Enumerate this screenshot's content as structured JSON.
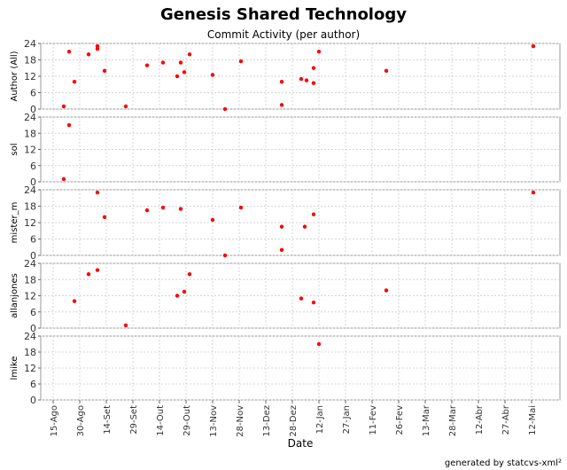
{
  "chart_data": {
    "type": "scatter",
    "title": "Genesis Shared Technology",
    "subtitle": "Commit Activity (per author)",
    "xlabel": "Date",
    "x_ticks": [
      "15-Ago",
      "30-Ago",
      "14-Set",
      "29-Set",
      "14-Out",
      "29-Out",
      "13-Nov",
      "28-Nov",
      "13-Dez",
      "28-Dez",
      "12-Jan",
      "27-Jan",
      "11-Fev",
      "26-Fev",
      "13-Mar",
      "28-Mar",
      "12-Abr",
      "27-Abr",
      "12-Mai"
    ],
    "ylim": [
      0,
      24
    ],
    "y_ticks": [
      0,
      6,
      12,
      18,
      24
    ],
    "grid": true,
    "marker_color": "#ff0000",
    "series": [
      {
        "name": "Author (All)",
        "x": [
          "2005-08-21",
          "2005-08-24",
          "2005-08-27",
          "2005-09-04",
          "2005-09-09",
          "2005-09-09",
          "2005-09-13",
          "2005-09-25",
          "2005-10-07",
          "2005-10-16",
          "2005-10-24",
          "2005-10-26",
          "2005-10-28",
          "2005-10-31",
          "2005-11-13",
          "2005-11-20",
          "2005-11-29",
          "2005-12-22",
          "2005-12-22",
          "2006-01-02",
          "2006-01-05",
          "2006-01-09",
          "2006-01-09",
          "2006-01-12",
          "2006-02-19",
          "2006-05-13"
        ],
        "y": [
          1,
          21,
          10,
          20,
          23,
          22,
          14,
          1,
          16,
          17,
          12,
          17,
          13.5,
          20,
          12.5,
          0,
          17.5,
          10,
          1.5,
          11,
          10.5,
          9.5,
          15,
          21,
          14,
          23
        ]
      },
      {
        "name": "sol",
        "x": [
          "2005-08-21",
          "2005-08-24"
        ],
        "y": [
          1,
          21
        ]
      },
      {
        "name": "mister_m",
        "x": [
          "2005-09-09",
          "2005-09-13",
          "2005-10-07",
          "2005-10-16",
          "2005-10-26",
          "2005-11-13",
          "2005-11-20",
          "2005-11-29",
          "2005-12-22",
          "2005-12-22",
          "2006-01-04",
          "2006-01-09",
          "2006-05-13"
        ],
        "y": [
          23,
          14,
          16.5,
          17.5,
          17,
          13,
          0,
          17.5,
          10.5,
          2,
          10.5,
          15,
          23
        ]
      },
      {
        "name": "allanjones",
        "x": [
          "2005-08-27",
          "2005-09-04",
          "2005-09-09",
          "2005-09-25",
          "2005-10-24",
          "2005-10-28",
          "2005-10-31",
          "2006-01-02",
          "2006-01-09",
          "2006-02-19"
        ],
        "y": [
          10,
          20,
          21.5,
          1,
          12,
          13.5,
          20,
          11,
          9.5,
          14
        ]
      },
      {
        "name": "lmike",
        "x": [
          "2006-01-12"
        ],
        "y": [
          21
        ]
      }
    ]
  },
  "footer": {
    "credit": "generated by statcvs-xml²"
  }
}
